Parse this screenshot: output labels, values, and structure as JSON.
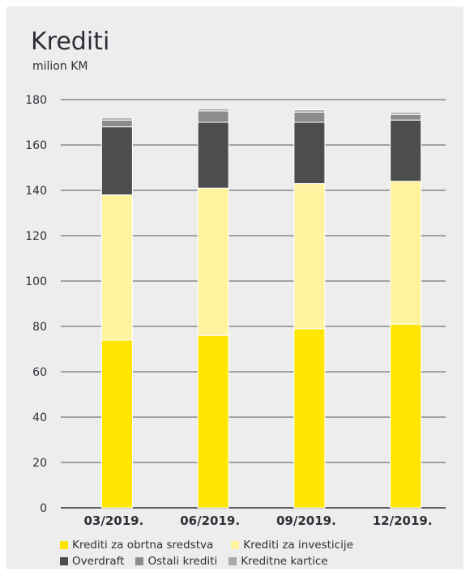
{
  "title": "Krediti",
  "subtitle": "milion KM",
  "chart_data": {
    "type": "bar",
    "stacked": true,
    "title": "Krediti",
    "ylabel": "milion KM",
    "xlabel": "",
    "categories": [
      "03/2019.",
      "06/2019.",
      "09/2019.",
      "12/2019."
    ],
    "ylim": [
      0,
      180
    ],
    "yticks": [
      0,
      20,
      40,
      60,
      80,
      100,
      120,
      140,
      160,
      180
    ],
    "grid": true,
    "legend_position": "bottom",
    "series": [
      {
        "name": "Krediti za obrtna sredstva",
        "color": "#ffe600",
        "values": [
          74,
          76,
          79,
          81
        ]
      },
      {
        "name": "Krediti za investicije",
        "color": "#fff3a0",
        "values": [
          64,
          65,
          64,
          63
        ]
      },
      {
        "name": "Overdraft",
        "color": "#4d4d4f",
        "values": [
          30,
          29,
          27,
          27
        ]
      },
      {
        "name": "Ostali krediti",
        "color": "#8c8c8c",
        "values": [
          3,
          5,
          4.5,
          2.5
        ]
      },
      {
        "name": "Kreditne kartice",
        "color": "#a8a8a8",
        "values": [
          1,
          1,
          1,
          1
        ]
      }
    ]
  }
}
